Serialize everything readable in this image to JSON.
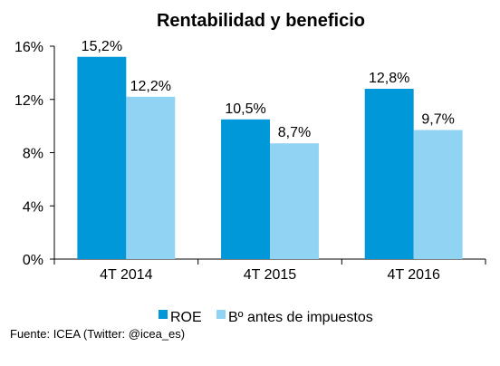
{
  "chart_data": {
    "type": "bar",
    "title": "Rentabilidad y beneficio",
    "categories": [
      "4T 2014",
      "4T 2015",
      "4T 2016"
    ],
    "series": [
      {
        "name": "ROE",
        "values": [
          15.2,
          10.5,
          12.8
        ],
        "labels": [
          "15,2%",
          "10,5%",
          "12,8%"
        ],
        "color": "#0098d8"
      },
      {
        "name": "Bº antes de impuestos",
        "values": [
          12.2,
          8.7,
          9.7
        ],
        "labels": [
          "12,2%",
          "8,7%",
          "9,7%"
        ],
        "color": "#90d3f3"
      }
    ],
    "ylim": [
      0,
      16
    ],
    "yticks": [
      0,
      4,
      8,
      12,
      16
    ],
    "ytick_labels": [
      "0%",
      "4%",
      "8%",
      "12%",
      "16%"
    ],
    "grid": false,
    "legend_position": "bottom-center"
  },
  "source": "Fuente: ICEA (Twitter: @icea_es)"
}
